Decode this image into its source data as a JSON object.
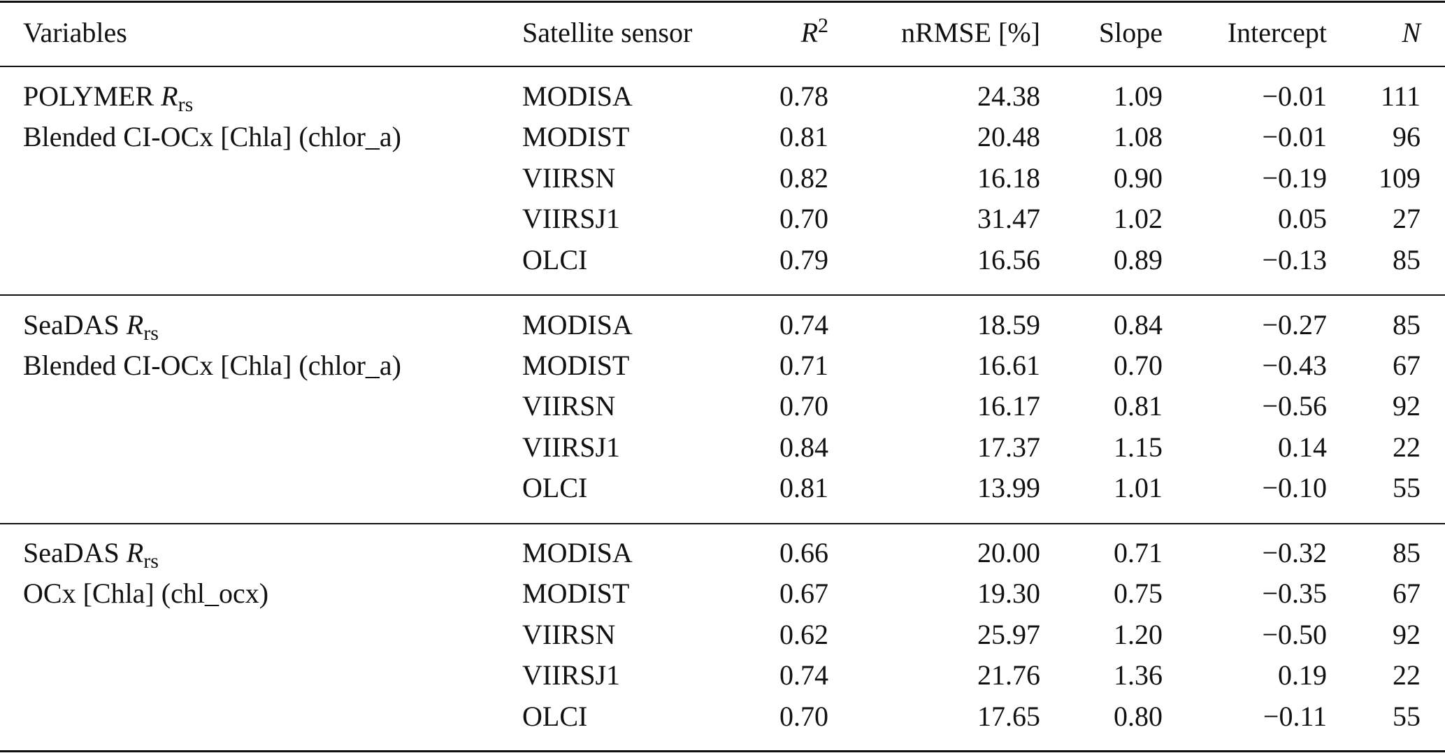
{
  "table": {
    "header": [
      "Variables",
      "Satellite sensor",
      {
        "base": "R",
        "sup": "2"
      },
      "nRMSE [%]",
      "Slope",
      "Intercept",
      "N"
    ],
    "groups": [
      {
        "variable": {
          "prefix": "POLYMER",
          "symbol": "R",
          "subscript": "rs"
        },
        "description": "Blended CI-OCx [Chla] (chlor_a)",
        "rows": [
          [
            "MODISA",
            "0.78",
            "24.38",
            "1.09",
            "−0.01",
            "111"
          ],
          [
            "MODIST",
            "0.81",
            "20.48",
            "1.08",
            "−0.01",
            "96"
          ],
          [
            "VIIRSN",
            "0.82",
            "16.18",
            "0.90",
            "−0.19",
            "109"
          ],
          [
            "VIIRSJ1",
            "0.70",
            "31.47",
            "1.02",
            "0.05",
            "27"
          ],
          [
            "OLCI",
            "0.79",
            "16.56",
            "0.89",
            "−0.13",
            "85"
          ]
        ]
      },
      {
        "variable": {
          "prefix": "SeaDAS",
          "symbol": "R",
          "subscript": "rs"
        },
        "description": "Blended CI-OCx [Chla] (chlor_a)",
        "rows": [
          [
            "MODISA",
            "0.74",
            "18.59",
            "0.84",
            "−0.27",
            "85"
          ],
          [
            "MODIST",
            "0.71",
            "16.61",
            "0.70",
            "−0.43",
            "67"
          ],
          [
            "VIIRSN",
            "0.70",
            "16.17",
            "0.81",
            "−0.56",
            "92"
          ],
          [
            "VIIRSJ1",
            "0.84",
            "17.37",
            "1.15",
            "0.14",
            "22"
          ],
          [
            "OLCI",
            "0.81",
            "13.99",
            "1.01",
            "−0.10",
            "55"
          ]
        ]
      },
      {
        "variable": {
          "prefix": "SeaDAS",
          "symbol": "R",
          "subscript": "rs"
        },
        "description": "OCx [Chla] (chl_ocx)",
        "rows": [
          [
            "MODISA",
            "0.66",
            "20.00",
            "0.71",
            "−0.32",
            "85"
          ],
          [
            "MODIST",
            "0.67",
            "19.30",
            "0.75",
            "−0.35",
            "67"
          ],
          [
            "VIIRSN",
            "0.62",
            "25.97",
            "1.20",
            "−0.50",
            "92"
          ],
          [
            "VIIRSJ1",
            "0.74",
            "21.76",
            "1.36",
            "0.19",
            "22"
          ],
          [
            "OLCI",
            "0.70",
            "17.65",
            "0.80",
            "−0.11",
            "55"
          ]
        ]
      }
    ]
  }
}
